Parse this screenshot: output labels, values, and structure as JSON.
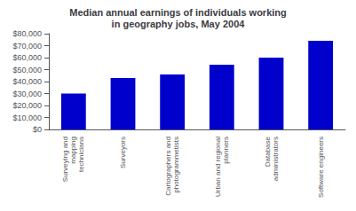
{
  "chart_data": {
    "type": "bar",
    "title": "Median annual earnings of individuals working\nin geography jobs, May 2004",
    "categories": [
      "Surveying and\nmapping\ntechnicians",
      "Surveyors",
      "Cartographers and\nphotogrammetists",
      "Urban and regional\nplanners",
      "Database\nadministrators",
      "Software engineers"
    ],
    "values": [
      30000,
      43000,
      46000,
      54000,
      60000,
      74000
    ],
    "color": "#0000CC",
    "ylim": [
      0,
      80000
    ],
    "yticks": [
      {
        "value": 0,
        "label": "$0"
      },
      {
        "value": 10000,
        "label": "$10,000"
      },
      {
        "value": 20000,
        "label": "$20,000"
      },
      {
        "value": 30000,
        "label": "$30,000"
      },
      {
        "value": 40000,
        "label": "$40,000"
      },
      {
        "value": 50000,
        "label": "$50,000"
      },
      {
        "value": 60000,
        "label": "$60,000"
      },
      {
        "value": 70000,
        "label": "$70,000"
      },
      {
        "value": 80000,
        "label": "$80,000"
      }
    ],
    "grid": false
  }
}
